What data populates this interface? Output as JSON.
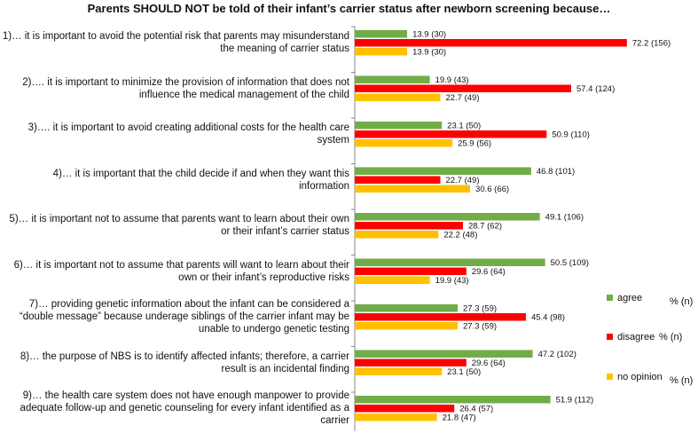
{
  "chart_data": {
    "type": "bar",
    "orientation": "horizontal",
    "title": "Parents SHOULD NOT be told of their infant’s carrier status after newborn screening because…",
    "xlim": [
      0,
      80
    ],
    "grid": false,
    "legend_position": "right",
    "legend_unit": "% (n)",
    "categories": [
      "1)… it is important to avoid the potential risk that parents may misunderstand the meaning of carrier status",
      "2)…. it is important to minimize the provision of information that does not influence the medical management of the child",
      "3)…. it is important to avoid creating additional costs for the health care system",
      "4)… it is important that the child decide if and when they want this information",
      "5)… it is important not to assume that parents want to learn about their own or their infant’s carrier status",
      "6)… it is important not to assume that parents will want to learn about their own or their infant’s reproductive risks",
      "7)… providing genetic information about the infant can be considered a “double message” because underage siblings of the carrier infant may be unable to undergo genetic testing",
      "8)… the purpose of NBS is to identify affected infants; therefore, a carrier result is an incidental finding",
      "9)… the health care system does not have enough manpower to provide adequate follow-up and genetic counseling for every infant identified as a carrier"
    ],
    "series": [
      {
        "name": "agree",
        "color": "#70ad47",
        "values": [
          13.9,
          19.9,
          23.1,
          46.8,
          49.1,
          50.5,
          27.3,
          47.2,
          51.9
        ],
        "labels": [
          "13.9 (30)",
          "19.9 (43)",
          "23.1 (50)",
          "46.8 (101)",
          "49.1 (106)",
          "50.5 (109)",
          "27.3 (59)",
          "47.2 (102)",
          "51.9 (112)"
        ]
      },
      {
        "name": "disagree",
        "color": "#ff0000",
        "values": [
          72.2,
          57.4,
          50.9,
          22.7,
          28.7,
          29.6,
          45.4,
          29.6,
          26.4
        ],
        "labels": [
          "72.2 (156)",
          "57.4 (124)",
          "50.9 (110)",
          "22.7 (49)",
          "28.7 (62)",
          "29.6 (64)",
          "45.4 (98)",
          "29.6 (64)",
          "26.4 (57)"
        ]
      },
      {
        "name": "no opinion",
        "color": "#ffc000",
        "values": [
          13.9,
          22.7,
          25.9,
          30.6,
          22.2,
          19.9,
          27.3,
          23.1,
          21.8
        ],
        "labels": [
          "13.9 (30)",
          "22.7 (49)",
          "25.9 (56)",
          "30.6 (66)",
          "22.2 (48)",
          "19.9 (43)",
          "27.3 (59)",
          "23.1 (50)",
          "21.8 (47)"
        ]
      }
    ]
  }
}
